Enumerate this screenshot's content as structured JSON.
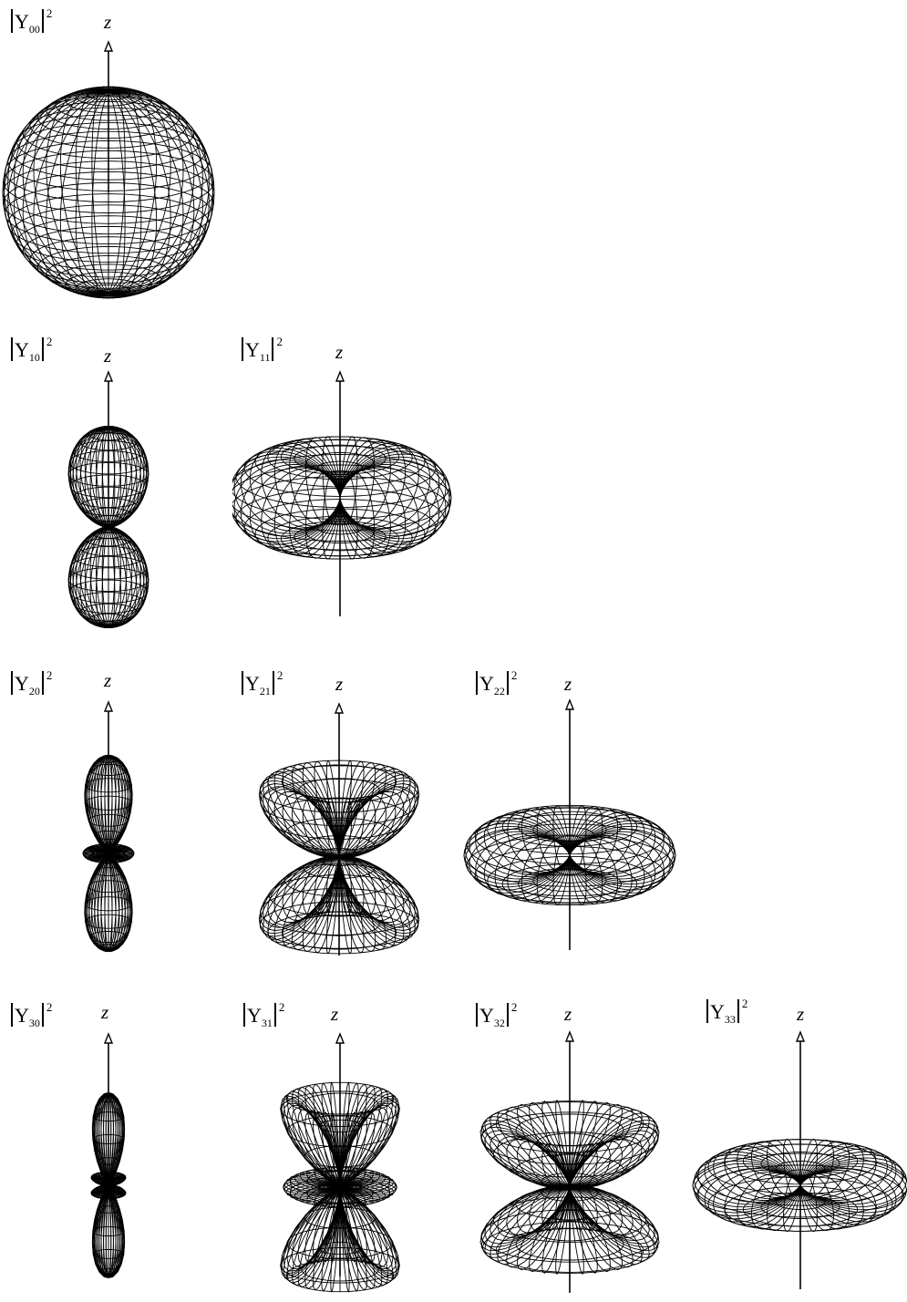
{
  "axis_label": "z",
  "panels": [
    {
      "id": "Y00",
      "name": "Y",
      "sub": "00",
      "sup": "2",
      "l": 0,
      "m": 0
    },
    {
      "id": "Y10",
      "name": "Y",
      "sub": "10",
      "sup": "2",
      "l": 1,
      "m": 0
    },
    {
      "id": "Y11",
      "name": "Y",
      "sub": "11",
      "sup": "2",
      "l": 1,
      "m": 1
    },
    {
      "id": "Y20",
      "name": "Y",
      "sub": "20",
      "sup": "2",
      "l": 2,
      "m": 0
    },
    {
      "id": "Y21",
      "name": "Y",
      "sub": "21",
      "sup": "2",
      "l": 2,
      "m": 1
    },
    {
      "id": "Y22",
      "name": "Y",
      "sub": "22",
      "sup": "2",
      "l": 2,
      "m": 2
    },
    {
      "id": "Y30",
      "name": "Y",
      "sub": "30",
      "sup": "2",
      "l": 3,
      "m": 0
    },
    {
      "id": "Y31",
      "name": "Y",
      "sub": "31",
      "sup": "2",
      "l": 3,
      "m": 1
    },
    {
      "id": "Y32",
      "name": "Y",
      "sub": "32",
      "sup": "2",
      "l": 3,
      "m": 2
    },
    {
      "id": "Y33",
      "name": "Y",
      "sub": "33",
      "sup": "2",
      "l": 3,
      "m": 3
    }
  ]
}
